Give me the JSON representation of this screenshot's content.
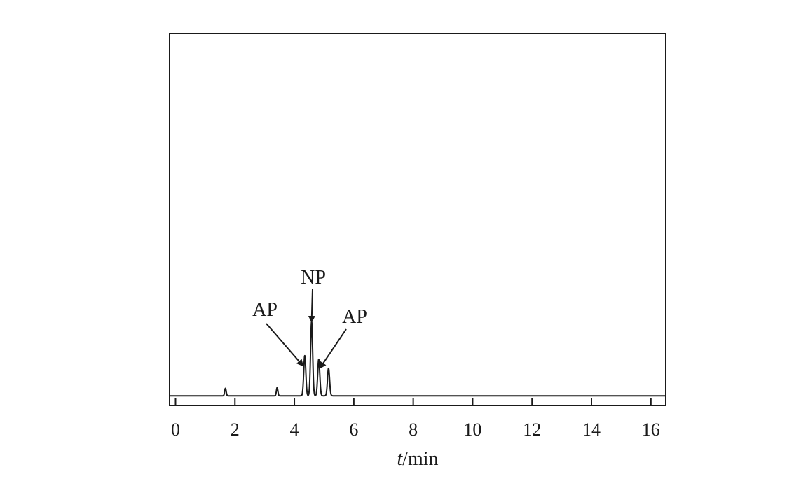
{
  "chart_data": {
    "type": "line",
    "title": "",
    "xlabel": "t/min",
    "xlabel_italic_part": "t",
    "xlabel_rest": "/min",
    "ylabel": "",
    "xlim": [
      -0.2,
      16.5
    ],
    "ylim": [
      0,
      1
    ],
    "x_ticks": [
      0,
      2,
      4,
      6,
      8,
      10,
      12,
      14,
      16
    ],
    "x_tick_labels": [
      "0",
      "2",
      "4",
      "6",
      "8",
      "10",
      "12",
      "14",
      "16"
    ],
    "grid": false,
    "legend": "none",
    "line_color": "#1a1a1a",
    "series": [
      {
        "baseline": 0.026,
        "peaks": [
          {
            "x": 1.68,
            "height": 0.02,
            "width": 0.025
          },
          {
            "x": 3.42,
            "height": 0.022,
            "width": 0.025
          },
          {
            "x": 4.35,
            "height": 0.108,
            "width": 0.035
          },
          {
            "x": 4.58,
            "height": 0.2,
            "width": 0.035
          },
          {
            "x": 4.82,
            "height": 0.098,
            "width": 0.035
          },
          {
            "x": 5.15,
            "height": 0.074,
            "width": 0.035
          }
        ]
      }
    ],
    "annotations": [
      {
        "text": "AP",
        "points_to_x": 4.35
      },
      {
        "text": "NP",
        "points_to_x": 4.58
      },
      {
        "text": "AP",
        "points_to_x": 4.82
      }
    ]
  }
}
